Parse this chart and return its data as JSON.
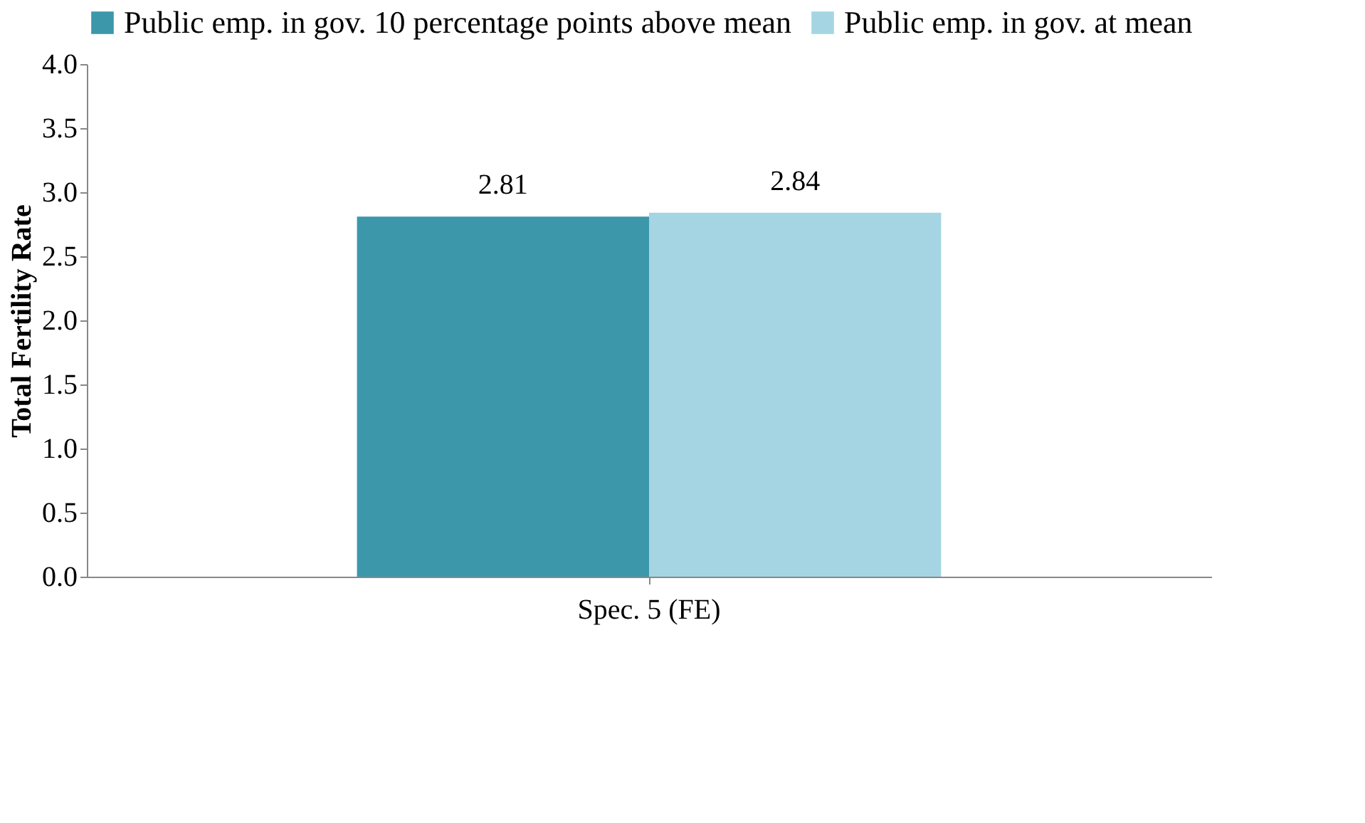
{
  "chart_data": {
    "type": "bar",
    "ylabel": "Total Fertility Rate",
    "categories": [
      "Spec. 5 (FE)"
    ],
    "series": [
      {
        "name": "Public emp. in gov. 10 percentage points above mean",
        "color": "#3d97ab",
        "values": [
          2.81
        ]
      },
      {
        "name": "Public emp. in gov. at mean",
        "color": "#a5d5e3",
        "values": [
          2.84
        ]
      }
    ],
    "ylim": [
      0,
      4
    ],
    "yticks": [
      {
        "value": 0,
        "label": "0.0"
      },
      {
        "value": 0.5,
        "label": "0.5"
      },
      {
        "value": 1,
        "label": "1.0"
      },
      {
        "value": 1.5,
        "label": "1.5"
      },
      {
        "value": 2,
        "label": "2.0"
      },
      {
        "value": 2.5,
        "label": "2.5"
      },
      {
        "value": 3,
        "label": "3.0"
      },
      {
        "value": 3.5,
        "label": "3.5"
      },
      {
        "value": 4,
        "label": "4.0"
      }
    ],
    "data_labels": true,
    "legend": "top",
    "grid": false
  }
}
